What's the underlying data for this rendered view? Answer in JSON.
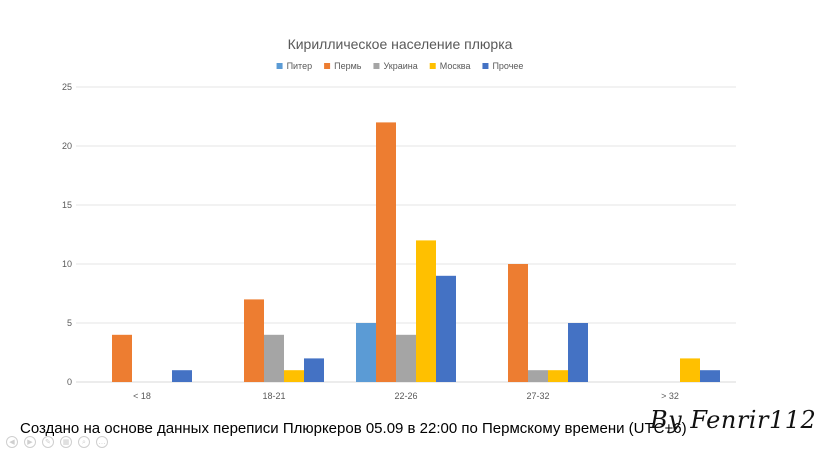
{
  "chart_data": {
    "type": "bar",
    "title": "Кириллическое население плюрка",
    "categories": [
      "< 18",
      "18-21",
      "22-26",
      "27-32",
      "> 32"
    ],
    "series": [
      {
        "name": "Питер",
        "color": "#5B9BD5",
        "values": [
          0,
          0,
          5,
          0,
          0
        ]
      },
      {
        "name": "Пермь",
        "color": "#ED7D31",
        "values": [
          4,
          7,
          22,
          10,
          0
        ]
      },
      {
        "name": "Украина",
        "color": "#A5A5A5",
        "values": [
          0,
          4,
          4,
          1,
          0
        ]
      },
      {
        "name": "Москва",
        "color": "#FFC000",
        "values": [
          0,
          1,
          12,
          1,
          2
        ]
      },
      {
        "name": "Прочее",
        "color": "#4472C4",
        "values": [
          1,
          2,
          9,
          5,
          1
        ]
      }
    ],
    "ylim": [
      0,
      25
    ],
    "yticks": [
      0,
      5,
      10,
      15,
      20,
      25
    ],
    "grid": true,
    "legend_position": "top"
  },
  "caption": "Создано на основе данных переписи Плюркеров 05.09 в 22:00 по Пермскому времени (UTC+6)",
  "signature": "By Fenrir112",
  "nav_icons": [
    "previous-icon",
    "next-icon",
    "pen-icon",
    "slides-icon",
    "zoom-icon",
    "more-icon"
  ]
}
